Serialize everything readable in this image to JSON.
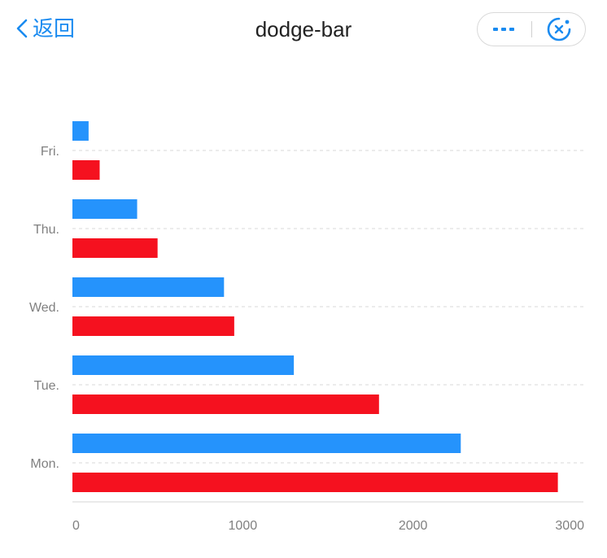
{
  "nav": {
    "back_label": "返回",
    "title": "dodge-bar",
    "icons": {
      "back": "chevron-left-icon",
      "more": "more-dots-icon",
      "close": "target-close-icon"
    },
    "accent": "#1a8bf0"
  },
  "chart_data": {
    "type": "bar",
    "orientation": "horizontal",
    "title": "",
    "xlabel": "",
    "ylabel": "",
    "categories": [
      "Mon.",
      "Tue.",
      "Wed.",
      "Thu.",
      "Fri."
    ],
    "series": [
      {
        "values": [
          2280,
          1300,
          890,
          380,
          95
        ],
        "color": "#2593fc"
      },
      {
        "values": [
          2850,
          1800,
          950,
          500,
          160
        ],
        "color": "#f5111f"
      }
    ],
    "xlim": [
      0,
      3000
    ],
    "xticks": [
      0,
      1000,
      2000,
      3000
    ],
    "grid": "dashed horizontal per category",
    "legend": "none"
  }
}
